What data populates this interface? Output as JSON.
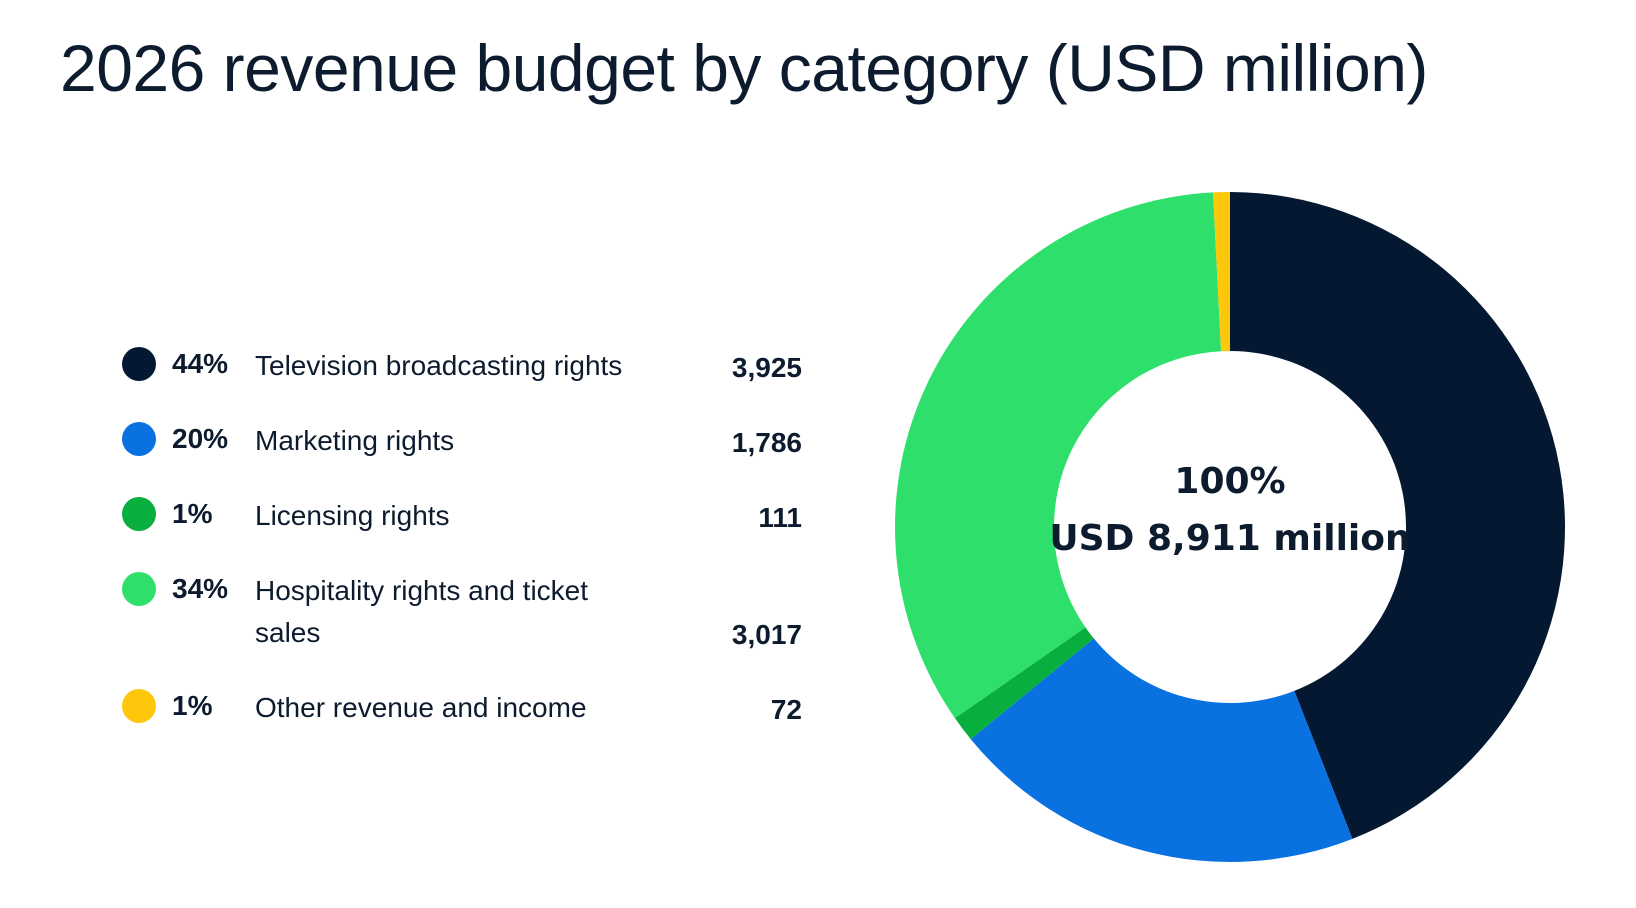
{
  "title": "2026 revenue budget by category (USD million)",
  "chart_data": {
    "type": "pie",
    "title": "2026 revenue budget by category (USD million)",
    "center_text": {
      "percent": "100%",
      "total": "USD 8,911 million"
    },
    "order": "clockwise from top",
    "series": [
      {
        "name": "Television broadcasting rights",
        "percent_label": "44%",
        "value": 3925,
        "value_label": "3,925",
        "color": "#051831"
      },
      {
        "name": "Marketing rights",
        "percent_label": "20%",
        "value": 1786,
        "value_label": "1,786",
        "color": "#0971e0"
      },
      {
        "name": "Licensing rights",
        "percent_label": "1%",
        "value": 111,
        "value_label": "111",
        "color": "#08ae3e"
      },
      {
        "name": "Hospitality rights and ticket sales",
        "percent_label": "34%",
        "value": 3017,
        "value_label": "3,017",
        "color": "#2ee06b"
      },
      {
        "name": "Other revenue and income",
        "percent_label": "1%",
        "value": 72,
        "value_label": "72",
        "color": "#fdc70c"
      }
    ]
  }
}
